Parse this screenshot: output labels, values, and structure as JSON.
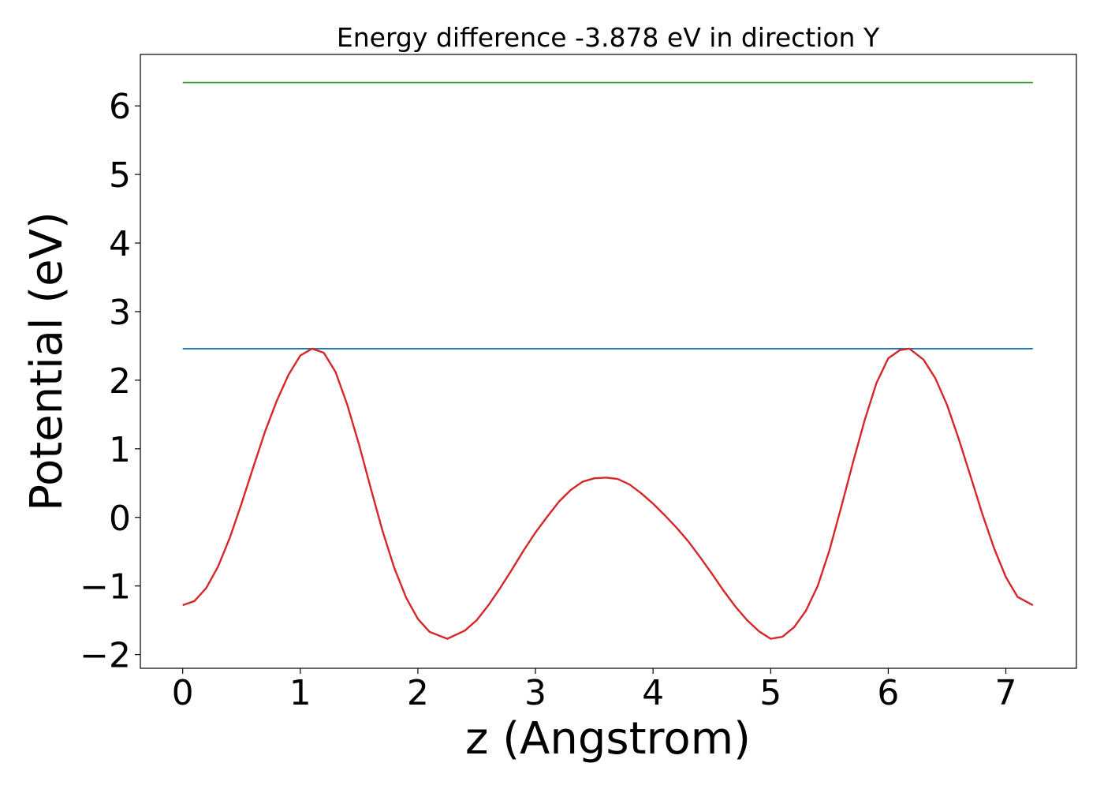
{
  "chart_data": {
    "type": "line",
    "title": "Energy difference -3.878 eV in direction Y",
    "xlabel": "z (Angstrom)",
    "ylabel": "Potential (eV)",
    "xlim": [
      -0.36,
      7.6
    ],
    "ylim": [
      -2.2,
      6.75
    ],
    "xticks": [
      0,
      1,
      2,
      3,
      4,
      5,
      6,
      7
    ],
    "xtick_labels": [
      "0",
      "1",
      "2",
      "3",
      "4",
      "5",
      "6",
      "7"
    ],
    "yticks": [
      -2,
      -1,
      0,
      1,
      2,
      3,
      4,
      5,
      6
    ],
    "ytick_labels": [
      "−2",
      "−1",
      "0",
      "1",
      "2",
      "3",
      "4",
      "5",
      "6"
    ],
    "grid": false,
    "series": [
      {
        "color": "#2ca02c",
        "x": [
          0,
          7.23
        ],
        "y": [
          6.34,
          6.34
        ]
      },
      {
        "color": "#1f77b4",
        "x": [
          0,
          7.23
        ],
        "y": [
          2.46,
          2.46
        ]
      },
      {
        "color": "#d62728",
        "x": [
          0,
          0.1,
          0.2,
          0.3,
          0.4,
          0.5,
          0.6,
          0.7,
          0.8,
          0.9,
          1.0,
          1.1,
          1.2,
          1.3,
          1.4,
          1.5,
          1.6,
          1.7,
          1.8,
          1.9,
          2.0,
          2.1,
          2.25,
          2.4,
          2.5,
          2.6,
          2.7,
          2.8,
          2.9,
          3.0,
          3.1,
          3.2,
          3.3,
          3.4,
          3.5,
          3.6,
          3.7,
          3.8,
          3.9,
          4.0,
          4.1,
          4.2,
          4.3,
          4.4,
          4.5,
          4.6,
          4.7,
          4.8,
          4.9,
          5.0,
          5.1,
          5.2,
          5.3,
          5.4,
          5.5,
          5.6,
          5.7,
          5.8,
          5.9,
          6.0,
          6.1,
          6.18,
          6.3,
          6.4,
          6.5,
          6.6,
          6.7,
          6.8,
          6.9,
          7.0,
          7.1,
          7.23
        ],
        "y": [
          -1.28,
          -1.22,
          -1.03,
          -0.72,
          -0.3,
          0.2,
          0.73,
          1.25,
          1.7,
          2.08,
          2.36,
          2.46,
          2.4,
          2.12,
          1.64,
          1.06,
          0.42,
          -0.2,
          -0.74,
          -1.17,
          -1.48,
          -1.67,
          -1.77,
          -1.65,
          -1.5,
          -1.28,
          -1.03,
          -0.76,
          -0.48,
          -0.22,
          0.01,
          0.23,
          0.4,
          0.52,
          0.57,
          0.58,
          0.56,
          0.48,
          0.35,
          0.2,
          0.03,
          -0.15,
          -0.35,
          -0.58,
          -0.82,
          -1.07,
          -1.3,
          -1.5,
          -1.66,
          -1.77,
          -1.74,
          -1.6,
          -1.36,
          -1.0,
          -0.48,
          0.15,
          0.8,
          1.42,
          1.96,
          2.32,
          2.44,
          2.46,
          2.3,
          2.03,
          1.64,
          1.14,
          0.6,
          0.05,
          -0.45,
          -0.87,
          -1.16,
          -1.28
        ]
      }
    ]
  }
}
